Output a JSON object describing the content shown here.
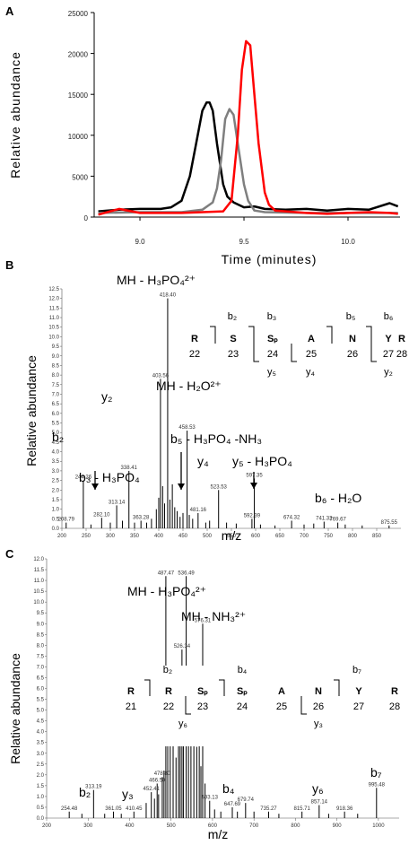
{
  "chart_data": [
    {
      "panel": "A",
      "type": "line",
      "xlabel": "Time (minutes)",
      "ylabel": "Relative abundance",
      "xlim": [
        8.78,
        10.25
      ],
      "ylim": [
        0,
        25000
      ],
      "xticks": [
        "9.0",
        "9.5",
        "10.0"
      ],
      "yticks": [
        "0",
        "5000",
        "10000",
        "15000",
        "20000",
        "25000"
      ],
      "series": [
        {
          "color": "#000000",
          "x": [
            8.8,
            8.9,
            9.0,
            9.1,
            9.15,
            9.2,
            9.24,
            9.27,
            9.3,
            9.32,
            9.335,
            9.35,
            9.37,
            9.4,
            9.42,
            9.45,
            9.5,
            9.55,
            9.6,
            9.7,
            9.8,
            9.9,
            10.0,
            10.1,
            10.2,
            10.24
          ],
          "y": [
            700,
            900,
            1000,
            1000,
            1200,
            2000,
            5000,
            9000,
            13000,
            14000,
            14000,
            13000,
            9000,
            4000,
            2500,
            1800,
            1200,
            1300,
            1000,
            900,
            1000,
            800,
            1000,
            900,
            1700,
            1300
          ]
        },
        {
          "color": "#7f7f7f",
          "x": [
            8.8,
            9.0,
            9.2,
            9.3,
            9.35,
            9.37,
            9.39,
            9.41,
            9.43,
            9.45,
            9.47,
            9.5,
            9.52,
            9.55,
            9.6,
            9.8,
            10.0,
            10.24
          ],
          "y": [
            500,
            600,
            600,
            900,
            1800,
            3500,
            7000,
            12000,
            13200,
            12500,
            9000,
            4000,
            2000,
            800,
            600,
            500,
            500,
            500
          ]
        },
        {
          "color": "#ff0000",
          "x": [
            8.8,
            8.9,
            9.0,
            9.2,
            9.4,
            9.44,
            9.47,
            9.49,
            9.51,
            9.53,
            9.55,
            9.57,
            9.6,
            9.62,
            9.65,
            9.7,
            9.8,
            9.9,
            10.0,
            10.1,
            10.2,
            10.24
          ],
          "y": [
            300,
            1000,
            500,
            500,
            700,
            2000,
            10000,
            18000,
            21500,
            21000,
            15000,
            9000,
            3000,
            1500,
            800,
            700,
            500,
            400,
            500,
            600,
            500,
            400
          ]
        }
      ]
    },
    {
      "panel": "B",
      "type": "bar",
      "xlabel": "m/z",
      "ylabel": "Relative abundance",
      "xlim": [
        200,
        900
      ],
      "ylim": [
        0,
        12.5
      ],
      "xticks": [
        "200",
        "250",
        "300",
        "350",
        "400",
        "450",
        "500",
        "550",
        "600",
        "650",
        "700",
        "750",
        "800",
        "850"
      ],
      "yticks": [
        "0.0",
        "0.5",
        "1.0",
        "1.5",
        "2.0",
        "2.5",
        "3.0",
        "3.5",
        "4.0",
        "4.5",
        "5.0",
        "5.5",
        "6.0",
        "6.5",
        "7.0",
        "7.5",
        "8.0",
        "8.5",
        "9.0",
        "9.5",
        "10.0",
        "10.5",
        "11.0",
        "11.5",
        "12.0",
        "12.5"
      ],
      "peaks": [
        {
          "mz": 208.79,
          "i": 0.3,
          "label": "208.79"
        },
        {
          "mz": 244.26,
          "i": 2.5,
          "label": "244.26"
        },
        {
          "mz": 282.1,
          "i": 0.55,
          "label": "282.10"
        },
        {
          "mz": 313.14,
          "i": 1.2,
          "label": "313.14"
        },
        {
          "mz": 338.41,
          "i": 3.0,
          "label": "338.41"
        },
        {
          "mz": 363.28,
          "i": 0.4,
          "label": "363.28"
        },
        {
          "mz": 403.56,
          "i": 7.8,
          "label": "403.56"
        },
        {
          "mz": 418.4,
          "i": 12.0,
          "label": "418.40"
        },
        {
          "mz": 458.53,
          "i": 5.1,
          "label": "458.53"
        },
        {
          "mz": 481.16,
          "i": 0.8,
          "label": "481.16"
        },
        {
          "mz": 523.53,
          "i": 2.0,
          "label": "523.53"
        },
        {
          "mz": 592.39,
          "i": 0.5,
          "label": "592.39"
        },
        {
          "mz": 597.35,
          "i": 2.6,
          "label": "597.35"
        },
        {
          "mz": 674.32,
          "i": 0.4,
          "label": "674.32"
        },
        {
          "mz": 741.32,
          "i": 0.35,
          "label": "741.32"
        },
        {
          "mz": 769.67,
          "i": 0.3,
          "label": "769.67"
        },
        {
          "mz": 875.55,
          "i": 0.15,
          "label": "875.55"
        },
        {
          "mz": 395,
          "i": 1.0
        },
        {
          "mz": 400,
          "i": 1.6
        },
        {
          "mz": 408,
          "i": 2.2
        },
        {
          "mz": 412,
          "i": 1.3
        },
        {
          "mz": 423,
          "i": 1.5
        },
        {
          "mz": 428,
          "i": 2.3
        },
        {
          "mz": 433,
          "i": 1.1
        },
        {
          "mz": 438,
          "i": 0.9
        },
        {
          "mz": 444,
          "i": 0.6
        },
        {
          "mz": 450,
          "i": 0.8
        },
        {
          "mz": 463,
          "i": 0.7
        },
        {
          "mz": 470,
          "i": 0.5
        },
        {
          "mz": 497,
          "i": 0.3
        },
        {
          "mz": 505,
          "i": 0.4
        },
        {
          "mz": 540,
          "i": 0.3
        },
        {
          "mz": 560,
          "i": 0.25
        },
        {
          "mz": 610,
          "i": 0.2
        },
        {
          "mz": 640,
          "i": 0.15
        },
        {
          "mz": 700,
          "i": 0.2
        },
        {
          "mz": 720,
          "i": 0.25
        },
        {
          "mz": 785,
          "i": 0.2
        },
        {
          "mz": 820,
          "i": 0.15
        },
        {
          "mz": 260,
          "i": 0.2
        },
        {
          "mz": 300,
          "i": 0.3
        },
        {
          "mz": 325,
          "i": 0.4
        },
        {
          "mz": 350,
          "i": 0.3
        },
        {
          "mz": 375,
          "i": 0.3
        },
        {
          "mz": 385,
          "i": 0.5
        }
      ],
      "annotations": {
        "mh_h3po4": "MH - H₃PO₄²⁺",
        "mh_h2o": "MH - H₂O²⁺",
        "b2": "b₂",
        "y2": "y₂",
        "b3_h3po4": "b₃ - H₃PO₄",
        "b5_h3po4_nh3": "b₅ - H₃PO₄ -NH₃",
        "y4": "y₄",
        "y5_h3po4": "y₅ - H₃PO₄",
        "b6_h2o": "b₆ - H₂O"
      },
      "sequence": {
        "residues": [
          "R",
          "S",
          "Sₚ",
          "A",
          "N",
          "Y",
          "R"
        ],
        "positions": [
          "22",
          "23",
          "24",
          "25",
          "26",
          "27",
          "28"
        ],
        "b_ions": [
          "b₂",
          "b₃",
          "b₅",
          "b₆"
        ],
        "y_ions": [
          "y₅",
          "y₄",
          "y₂"
        ]
      }
    },
    {
      "panel": "C",
      "type": "bar",
      "xlabel": "m/z",
      "ylabel": "Relative abundance",
      "xlim": [
        200,
        1050
      ],
      "ylim": [
        0,
        12.0
      ],
      "xticks": [
        "200",
        "300",
        "400",
        "500",
        "600",
        "700",
        "800",
        "900",
        "1000"
      ],
      "yticks": [
        "0.0",
        "0.5",
        "1.0",
        "1.5",
        "2.0",
        "2.5",
        "3.0",
        "3.5",
        "4.0",
        "4.5",
        "5.0",
        "5.5",
        "6.0",
        "6.5",
        "7.0",
        "7.5",
        "8.0",
        "8.5",
        "9.0",
        "9.5",
        "10.0",
        "10.5",
        "11.0",
        "11.5",
        "12.0"
      ],
      "peaks": [
        {
          "mz": 254.48,
          "i": 0.3,
          "label": "254.48"
        },
        {
          "mz": 313.19,
          "i": 1.3,
          "label": "313.19"
        },
        {
          "mz": 361.05,
          "i": 0.3,
          "label": "361.05"
        },
        {
          "mz": 410.45,
          "i": 0.3,
          "label": "410.45"
        },
        {
          "mz": 452.41,
          "i": 1.2,
          "label": "452.41"
        },
        {
          "mz": 466.5,
          "i": 1.6,
          "label": "466.50"
        },
        {
          "mz": 478.8,
          "i": 1.9,
          "label": "478.80"
        },
        {
          "mz": 487.47,
          "i": 11.2,
          "label": "487.47"
        },
        {
          "mz": 526.34,
          "i": 7.8,
          "label": "526.34"
        },
        {
          "mz": 536.49,
          "i": 11.2,
          "label": "536.49"
        },
        {
          "mz": 576.31,
          "i": 9.0,
          "label": "576.31"
        },
        {
          "mz": 593.13,
          "i": 0.8,
          "label": "593.13"
        },
        {
          "mz": 647.69,
          "i": 0.5,
          "label": "647.69"
        },
        {
          "mz": 679.74,
          "i": 0.7,
          "label": "679.74"
        },
        {
          "mz": 735.27,
          "i": 0.3,
          "label": "735.27"
        },
        {
          "mz": 815.71,
          "i": 0.3,
          "label": "815.71"
        },
        {
          "mz": 857.14,
          "i": 0.6,
          "label": "857.14"
        },
        {
          "mz": 918.36,
          "i": 0.3,
          "label": "918.36"
        },
        {
          "mz": 995.48,
          "i": 1.4,
          "label": "995.48"
        },
        {
          "mz": 492,
          "i": 4.6
        },
        {
          "mz": 498,
          "i": 3.6
        },
        {
          "mz": 505,
          "i": 4.6
        },
        {
          "mz": 512,
          "i": 2.8
        },
        {
          "mz": 518,
          "i": 4.4
        },
        {
          "mz": 522,
          "i": 5.2
        },
        {
          "mz": 530,
          "i": 4.6
        },
        {
          "mz": 542,
          "i": 4.6
        },
        {
          "mz": 548,
          "i": 3.8
        },
        {
          "mz": 555,
          "i": 4.2
        },
        {
          "mz": 562,
          "i": 3.3
        },
        {
          "mz": 568,
          "i": 4.6
        },
        {
          "mz": 572,
          "i": 2.4
        },
        {
          "mz": 582,
          "i": 1.6
        },
        {
          "mz": 440,
          "i": 0.7
        },
        {
          "mz": 460,
          "i": 0.9
        },
        {
          "mz": 470,
          "i": 1.1
        },
        {
          "mz": 483,
          "i": 2.2
        },
        {
          "mz": 605,
          "i": 0.4
        },
        {
          "mz": 620,
          "i": 0.3
        },
        {
          "mz": 660,
          "i": 0.3
        },
        {
          "mz": 700,
          "i": 0.3
        },
        {
          "mz": 760,
          "i": 0.2
        },
        {
          "mz": 880,
          "i": 0.2
        },
        {
          "mz": 950,
          "i": 0.2
        },
        {
          "mz": 340,
          "i": 0.2
        },
        {
          "mz": 380,
          "i": 0.2
        },
        {
          "mz": 285,
          "i": 0.2
        }
      ],
      "annotations": {
        "mh_h3po4": "MH - H₃PO₄²⁺",
        "mh_nh3": "MH - NH₃²⁺",
        "b2": "b₂",
        "y3": "y₃",
        "b4": "b₄",
        "y6": "y₆",
        "b7": "b₇"
      },
      "sequence": {
        "residues": [
          "R",
          "R",
          "Sₚ",
          "Sₚ",
          "A",
          "N",
          "Y",
          "R"
        ],
        "positions": [
          "21",
          "22",
          "23",
          "24",
          "25",
          "26",
          "27",
          "28"
        ],
        "b_ions": [
          "b₂",
          "b₄",
          "b₇"
        ],
        "y_ions": [
          "y₆",
          "y₃"
        ]
      }
    }
  ]
}
